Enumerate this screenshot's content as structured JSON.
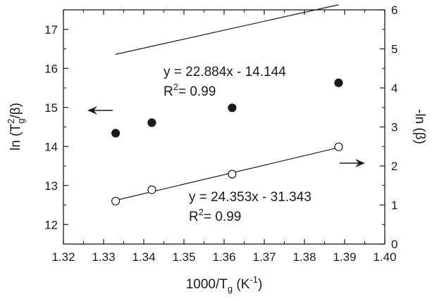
{
  "chart_data": {
    "type": "scatter",
    "xlabel": "1000/T_g (K^-1)",
    "ylabel_left": "ln (T_g^2/β)",
    "ylabel_right": "-ln (β)",
    "xlim": [
      1.32,
      1.4
    ],
    "ylim_left": [
      11.5,
      17.5
    ],
    "ylim_right": [
      0,
      6
    ],
    "x_ticks": [
      "1.32",
      "1.33",
      "1.34",
      "1.35",
      "1.36",
      "1.37",
      "1.38",
      "1.39",
      "1.40"
    ],
    "y_left_ticks": [
      "12",
      "13",
      "14",
      "15",
      "16",
      "17"
    ],
    "y_right_ticks": [
      "0",
      "1",
      "2",
      "3",
      "4",
      "5",
      "6"
    ],
    "series": [
      {
        "axis": "left",
        "marker": "filled-circle",
        "x": [
          1.333,
          1.342,
          1.362,
          1.3885
        ],
        "y": [
          14.34,
          14.61,
          14.99,
          15.63
        ],
        "fit": {
          "slope": 22.884,
          "intercept": -14.144
        },
        "equation": "y = 22.884x - 14.144",
        "r2": "0.99"
      },
      {
        "axis": "right",
        "marker": "open-circle",
        "x": [
          1.333,
          1.342,
          1.362,
          1.3885
        ],
        "y": [
          1.1,
          1.39,
          1.79,
          2.49
        ],
        "fit": {
          "slope": 24.353,
          "intercept": -31.343
        },
        "equation": "y = 24.353x - 31.343",
        "r2": "0.99"
      }
    ],
    "annotations": [
      {
        "type": "arrow",
        "direction": "left",
        "target_axis": "left"
      },
      {
        "type": "arrow",
        "direction": "right",
        "target_axis": "right"
      }
    ]
  }
}
